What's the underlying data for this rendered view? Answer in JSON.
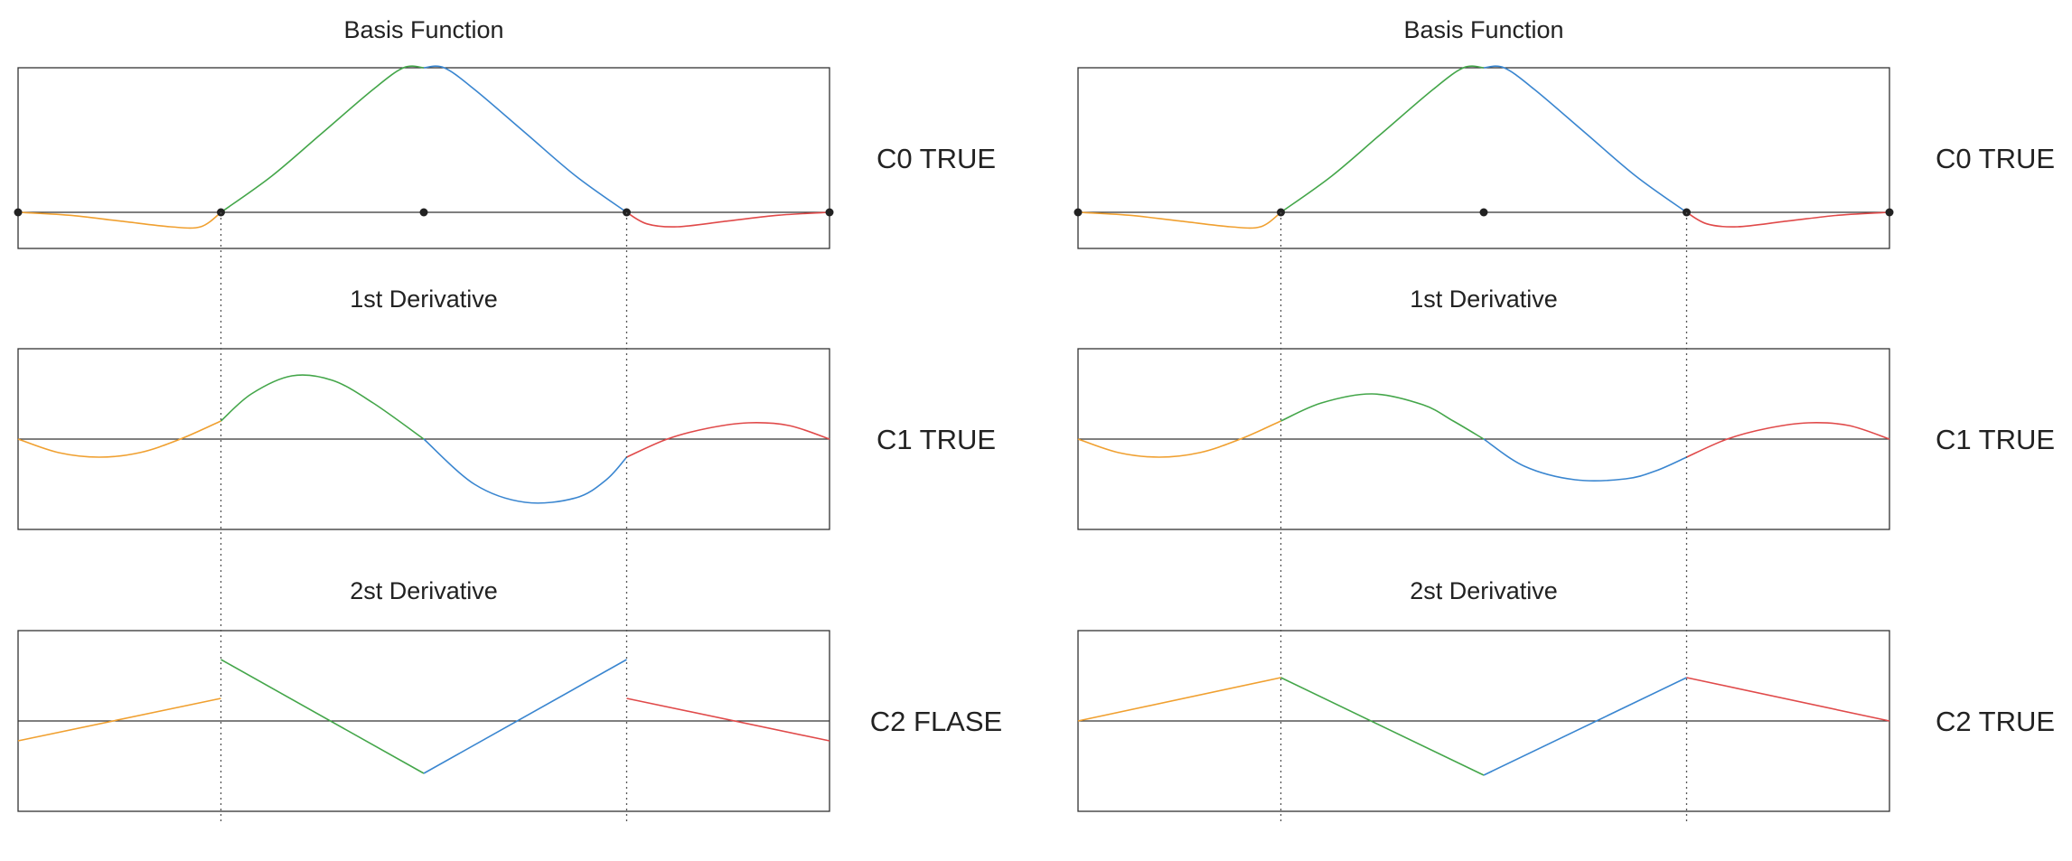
{
  "colors": {
    "seg1": "#f0a030",
    "seg2": "#44a64a",
    "seg3": "#3a86d0",
    "seg4": "#e04a4a",
    "axis": "#333333",
    "frame": "#333333",
    "knot": "#222222",
    "guide": "#555555"
  },
  "chart_data": [
    {
      "type": "line",
      "panel": "left",
      "knots_x": [
        0,
        1,
        2,
        3,
        4
      ],
      "rows": [
        {
          "title": "Basis Function",
          "continuity_label": "C0 TRUE",
          "show_knots": true,
          "ylim": [
            -0.25,
            1.0
          ],
          "series": [
            {
              "segment": 1,
              "points": [
                [
                  0,
                  0
                ],
                [
                  0.25,
                  -0.02
                ],
                [
                  0.5,
                  -0.06
                ],
                [
                  0.75,
                  -0.1
                ],
                [
                  0.9,
                  -0.1
                ],
                [
                  1,
                  0
                ]
              ]
            },
            {
              "segment": 2,
              "points": [
                [
                  1,
                  0
                ],
                [
                  1.25,
                  0.25
                ],
                [
                  1.5,
                  0.55
                ],
                [
                  1.75,
                  0.85
                ],
                [
                  1.9,
                  1.0
                ],
                [
                  2,
                  1.0
                ]
              ]
            },
            {
              "segment": 3,
              "points": [
                [
                  2,
                  1.0
                ],
                [
                  2.1,
                  1.0
                ],
                [
                  2.25,
                  0.85
                ],
                [
                  2.5,
                  0.55
                ],
                [
                  2.75,
                  0.25
                ],
                [
                  3,
                  0
                ]
              ]
            },
            {
              "segment": 4,
              "points": [
                [
                  3,
                  0
                ],
                [
                  3.1,
                  -0.08
                ],
                [
                  3.25,
                  -0.1
                ],
                [
                  3.5,
                  -0.06
                ],
                [
                  3.75,
                  -0.02
                ],
                [
                  4,
                  0
                ]
              ]
            }
          ]
        },
        {
          "title": "1st Derivative",
          "continuity_label": "C1 TRUE",
          "show_knots": false,
          "ylim": [
            -1.0,
            1.0
          ],
          "series": [
            {
              "segment": 1,
              "points": [
                [
                  0,
                  0
                ],
                [
                  0.2,
                  -0.15
                ],
                [
                  0.4,
                  -0.2
                ],
                [
                  0.6,
                  -0.15
                ],
                [
                  0.8,
                  0.0
                ],
                [
                  1,
                  0.2
                ]
              ]
            },
            {
              "segment": 2,
              "points": [
                [
                  1,
                  0.2
                ],
                [
                  1.15,
                  0.5
                ],
                [
                  1.35,
                  0.7
                ],
                [
                  1.55,
                  0.65
                ],
                [
                  1.75,
                  0.4
                ],
                [
                  2,
                  0.0
                ]
              ]
            },
            {
              "segment": 3,
              "points": [
                [
                  2,
                  0.0
                ],
                [
                  2.25,
                  -0.5
                ],
                [
                  2.5,
                  -0.7
                ],
                [
                  2.75,
                  -0.65
                ],
                [
                  2.9,
                  -0.45
                ],
                [
                  3,
                  -0.2
                ]
              ]
            },
            {
              "segment": 4,
              "points": [
                [
                  3,
                  -0.2
                ],
                [
                  3.2,
                  0.0
                ],
                [
                  3.4,
                  0.12
                ],
                [
                  3.6,
                  0.18
                ],
                [
                  3.8,
                  0.15
                ],
                [
                  4,
                  0.0
                ]
              ]
            }
          ]
        },
        {
          "title": "2st Derivative",
          "continuity_label": "C2 FLASE",
          "show_knots": false,
          "ylim": [
            -1.0,
            1.0
          ],
          "series": [
            {
              "segment": 1,
              "points": [
                [
                  0,
                  -0.22
                ],
                [
                  1,
                  0.25
                ]
              ]
            },
            {
              "segment": 2,
              "points": [
                [
                  1,
                  0.68
                ],
                [
                  2,
                  -0.58
                ]
              ]
            },
            {
              "segment": 3,
              "points": [
                [
                  2,
                  -0.58
                ],
                [
                  3,
                  0.68
                ]
              ]
            },
            {
              "segment": 4,
              "points": [
                [
                  3,
                  0.25
                ],
                [
                  4,
                  -0.22
                ]
              ]
            }
          ]
        }
      ]
    },
    {
      "type": "line",
      "panel": "right",
      "knots_x": [
        0,
        1,
        2,
        3,
        4
      ],
      "rows": [
        {
          "title": "Basis Function",
          "continuity_label": "C0 TRUE",
          "show_knots": true,
          "ylim": [
            -0.25,
            1.0
          ],
          "series": [
            {
              "segment": 1,
              "points": [
                [
                  0,
                  0
                ],
                [
                  0.25,
                  -0.02
                ],
                [
                  0.5,
                  -0.06
                ],
                [
                  0.75,
                  -0.1
                ],
                [
                  0.9,
                  -0.1
                ],
                [
                  1,
                  0
                ]
              ]
            },
            {
              "segment": 2,
              "points": [
                [
                  1,
                  0
                ],
                [
                  1.25,
                  0.25
                ],
                [
                  1.5,
                  0.55
                ],
                [
                  1.75,
                  0.85
                ],
                [
                  1.9,
                  1.0
                ],
                [
                  2,
                  1.0
                ]
              ]
            },
            {
              "segment": 3,
              "points": [
                [
                  2,
                  1.0
                ],
                [
                  2.1,
                  1.0
                ],
                [
                  2.25,
                  0.85
                ],
                [
                  2.5,
                  0.55
                ],
                [
                  2.75,
                  0.25
                ],
                [
                  3,
                  0
                ]
              ]
            },
            {
              "segment": 4,
              "points": [
                [
                  3,
                  0
                ],
                [
                  3.1,
                  -0.08
                ],
                [
                  3.25,
                  -0.1
                ],
                [
                  3.5,
                  -0.06
                ],
                [
                  3.75,
                  -0.02
                ],
                [
                  4,
                  0
                ]
              ]
            }
          ]
        },
        {
          "title": "1st Derivative",
          "continuity_label": "C1 TRUE",
          "show_knots": false,
          "ylim": [
            -1.0,
            1.0
          ],
          "series": [
            {
              "segment": 1,
              "points": [
                [
                  0,
                  0
                ],
                [
                  0.2,
                  -0.15
                ],
                [
                  0.4,
                  -0.2
                ],
                [
                  0.6,
                  -0.15
                ],
                [
                  0.8,
                  0.0
                ],
                [
                  1,
                  0.2
                ]
              ]
            },
            {
              "segment": 2,
              "points": [
                [
                  1,
                  0.2
                ],
                [
                  1.2,
                  0.4
                ],
                [
                  1.45,
                  0.5
                ],
                [
                  1.7,
                  0.38
                ],
                [
                  1.85,
                  0.2
                ],
                [
                  2,
                  0.0
                ]
              ]
            },
            {
              "segment": 3,
              "points": [
                [
                  2,
                  0.0
                ],
                [
                  2.2,
                  -0.3
                ],
                [
                  2.45,
                  -0.45
                ],
                [
                  2.7,
                  -0.44
                ],
                [
                  2.85,
                  -0.35
                ],
                [
                  3,
                  -0.2
                ]
              ]
            },
            {
              "segment": 4,
              "points": [
                [
                  3,
                  -0.2
                ],
                [
                  3.2,
                  0.0
                ],
                [
                  3.4,
                  0.12
                ],
                [
                  3.6,
                  0.18
                ],
                [
                  3.8,
                  0.15
                ],
                [
                  4,
                  0.0
                ]
              ]
            }
          ]
        },
        {
          "title": "2st Derivative",
          "continuity_label": "C2 TRUE",
          "show_knots": false,
          "ylim": [
            -1.0,
            1.0
          ],
          "series": [
            {
              "segment": 1,
              "points": [
                [
                  0,
                  0
                ],
                [
                  1,
                  0.48
                ]
              ]
            },
            {
              "segment": 2,
              "points": [
                [
                  1,
                  0.48
                ],
                [
                  2,
                  -0.6
                ]
              ]
            },
            {
              "segment": 3,
              "points": [
                [
                  2,
                  -0.6
                ],
                [
                  3,
                  0.48
                ]
              ]
            },
            {
              "segment": 4,
              "points": [
                [
                  3,
                  0.48
                ],
                [
                  4,
                  0
                ]
              ]
            }
          ]
        }
      ]
    }
  ]
}
